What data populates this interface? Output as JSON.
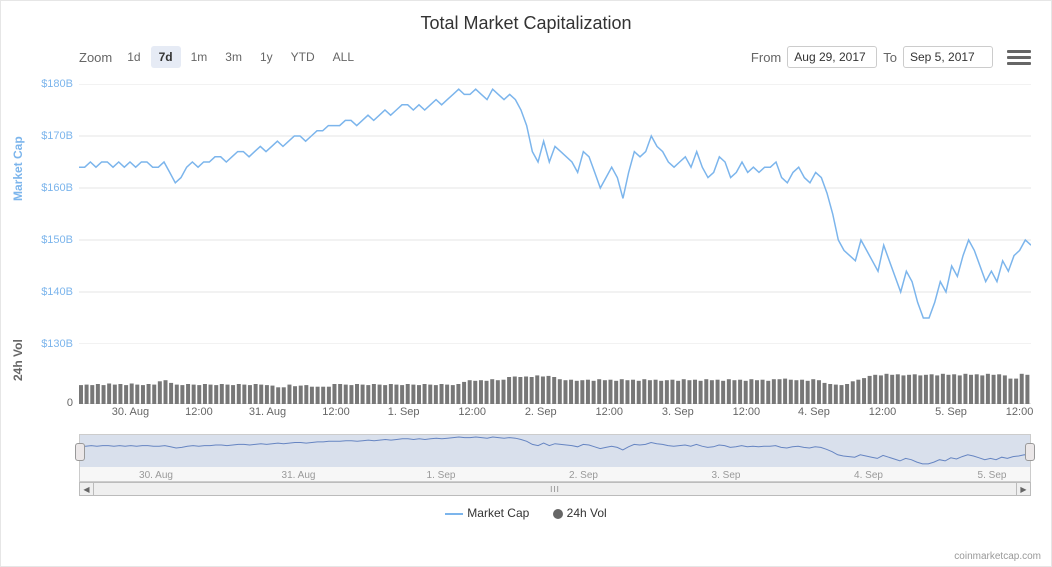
{
  "title": "Total Market Capitalization",
  "toolbar": {
    "zoom_label": "Zoom",
    "zoom_buttons": [
      "1d",
      "7d",
      "1m",
      "3m",
      "1y",
      "YTD",
      "ALL"
    ],
    "active_zoom": "7d",
    "from_label": "From",
    "to_label": "To",
    "from_value": "Aug 29, 2017",
    "to_value": "Sep 5, 2017"
  },
  "main_chart": {
    "type": "line",
    "ylabel": "Market Cap",
    "ylim": [
      130,
      180
    ],
    "ytick_step": 10,
    "yticks": [
      "$130B",
      "$140B",
      "$150B",
      "$160B",
      "$170B",
      "$180B"
    ],
    "line_color": "#7cb5ec",
    "line_width": 1.5,
    "background_color": "#ffffff",
    "grid_color": "#e6e6e6",
    "values": [
      164,
      164,
      165,
      164,
      165,
      165,
      164,
      165,
      164,
      165,
      164,
      165,
      165,
      164,
      164,
      165,
      163,
      161,
      162,
      164,
      165,
      164,
      165,
      165,
      166,
      166,
      165,
      166,
      167,
      167,
      166,
      167,
      168,
      167,
      168,
      169,
      168,
      169,
      170,
      170,
      169,
      170,
      171,
      171,
      172,
      172,
      172,
      173,
      173,
      172,
      173,
      174,
      173,
      174,
      175,
      174,
      175,
      176,
      176,
      175,
      176,
      175,
      176,
      177,
      176,
      177,
      178,
      179,
      178,
      178,
      179,
      178,
      177,
      179,
      178,
      177,
      178,
      177,
      175,
      172,
      167,
      165,
      169,
      165,
      168,
      167,
      166,
      165,
      163,
      167,
      166,
      163,
      160,
      162,
      164,
      162,
      158,
      163,
      167,
      166,
      167,
      170,
      168,
      167,
      165,
      164,
      165,
      166,
      164,
      167,
      164,
      162,
      163,
      166,
      165,
      162,
      163,
      165,
      163,
      164,
      163,
      164,
      164,
      165,
      162,
      161,
      163,
      164,
      162,
      161,
      163,
      162,
      159,
      155,
      150,
      148,
      147,
      146,
      150,
      148,
      146,
      144,
      149,
      146,
      143,
      140,
      144,
      142,
      138,
      135,
      135,
      138,
      142,
      140,
      145,
      143,
      147,
      150,
      148,
      145,
      142,
      144,
      142,
      146,
      144,
      147,
      148,
      150,
      149
    ]
  },
  "volume_chart": {
    "type": "bar",
    "ylabel": "24h Vol",
    "ytick_zero": "0",
    "bar_color": "#777777",
    "ylim": [
      0,
      10
    ],
    "values": [
      3.5,
      3.6,
      3.5,
      3.7,
      3.5,
      3.8,
      3.6,
      3.7,
      3.5,
      3.8,
      3.6,
      3.5,
      3.7,
      3.6,
      4.2,
      4.4,
      3.9,
      3.6,
      3.5,
      3.7,
      3.6,
      3.5,
      3.7,
      3.6,
      3.5,
      3.7,
      3.6,
      3.5,
      3.7,
      3.6,
      3.5,
      3.7,
      3.6,
      3.5,
      3.4,
      3.1,
      3.1,
      3.6,
      3.3,
      3.4,
      3.5,
      3.2,
      3.2,
      3.2,
      3.2,
      3.7,
      3.7,
      3.6,
      3.5,
      3.7,
      3.6,
      3.5,
      3.7,
      3.6,
      3.5,
      3.7,
      3.6,
      3.5,
      3.7,
      3.6,
      3.5,
      3.7,
      3.6,
      3.5,
      3.7,
      3.6,
      3.5,
      3.7,
      4.1,
      4.4,
      4.3,
      4.4,
      4.3,
      4.6,
      4.4,
      4.5,
      5.0,
      5.1,
      5.0,
      5.1,
      5.0,
      5.3,
      5.1,
      5.2,
      5.0,
      4.6,
      4.4,
      4.5,
      4.3,
      4.4,
      4.5,
      4.3,
      4.6,
      4.4,
      4.5,
      4.3,
      4.6,
      4.4,
      4.5,
      4.3,
      4.6,
      4.4,
      4.5,
      4.3,
      4.4,
      4.5,
      4.3,
      4.6,
      4.4,
      4.5,
      4.3,
      4.6,
      4.4,
      4.5,
      4.3,
      4.6,
      4.4,
      4.5,
      4.3,
      4.6,
      4.4,
      4.5,
      4.3,
      4.6,
      4.6,
      4.7,
      4.5,
      4.4,
      4.5,
      4.3,
      4.6,
      4.4,
      3.9,
      3.7,
      3.6,
      3.5,
      3.7,
      4.2,
      4.5,
      4.8,
      5.2,
      5.4,
      5.3,
      5.6,
      5.4,
      5.5,
      5.3,
      5.4,
      5.5,
      5.3,
      5.4,
      5.5,
      5.3,
      5.6,
      5.4,
      5.5,
      5.3,
      5.6,
      5.4,
      5.5,
      5.3,
      5.6,
      5.4,
      5.5,
      5.3,
      4.7,
      4.7,
      5.6,
      5.4
    ]
  },
  "x_ticks": [
    {
      "pos": 5.4,
      "label": "30. Aug"
    },
    {
      "pos": 12.6,
      "label": "12:00"
    },
    {
      "pos": 19.8,
      "label": "31. Aug"
    },
    {
      "pos": 27.0,
      "label": "12:00"
    },
    {
      "pos": 34.1,
      "label": "1. Sep"
    },
    {
      "pos": 41.3,
      "label": "12:00"
    },
    {
      "pos": 48.5,
      "label": "2. Sep"
    },
    {
      "pos": 55.7,
      "label": "12:00"
    },
    {
      "pos": 62.9,
      "label": "3. Sep"
    },
    {
      "pos": 70.1,
      "label": "12:00"
    },
    {
      "pos": 77.2,
      "label": "4. Sep"
    },
    {
      "pos": 84.4,
      "label": "12:00"
    },
    {
      "pos": 91.6,
      "label": "5. Sep"
    },
    {
      "pos": 98.8,
      "label": "12:00"
    }
  ],
  "navigator": {
    "line_color": "#6685c2",
    "mask_color": "rgba(102,133,194,0.2)",
    "x_ticks": [
      {
        "pos": 8,
        "label": "30. Aug"
      },
      {
        "pos": 23,
        "label": "31. Aug"
      },
      {
        "pos": 38,
        "label": "1. Sep"
      },
      {
        "pos": 53,
        "label": "2. Sep"
      },
      {
        "pos": 68,
        "label": "3. Sep"
      },
      {
        "pos": 83,
        "label": "4. Sep"
      },
      {
        "pos": 96,
        "label": "5. Sep"
      }
    ]
  },
  "legend": {
    "series1": "Market Cap",
    "series2": "24h Vol"
  },
  "credit": "coinmarketcap.com"
}
